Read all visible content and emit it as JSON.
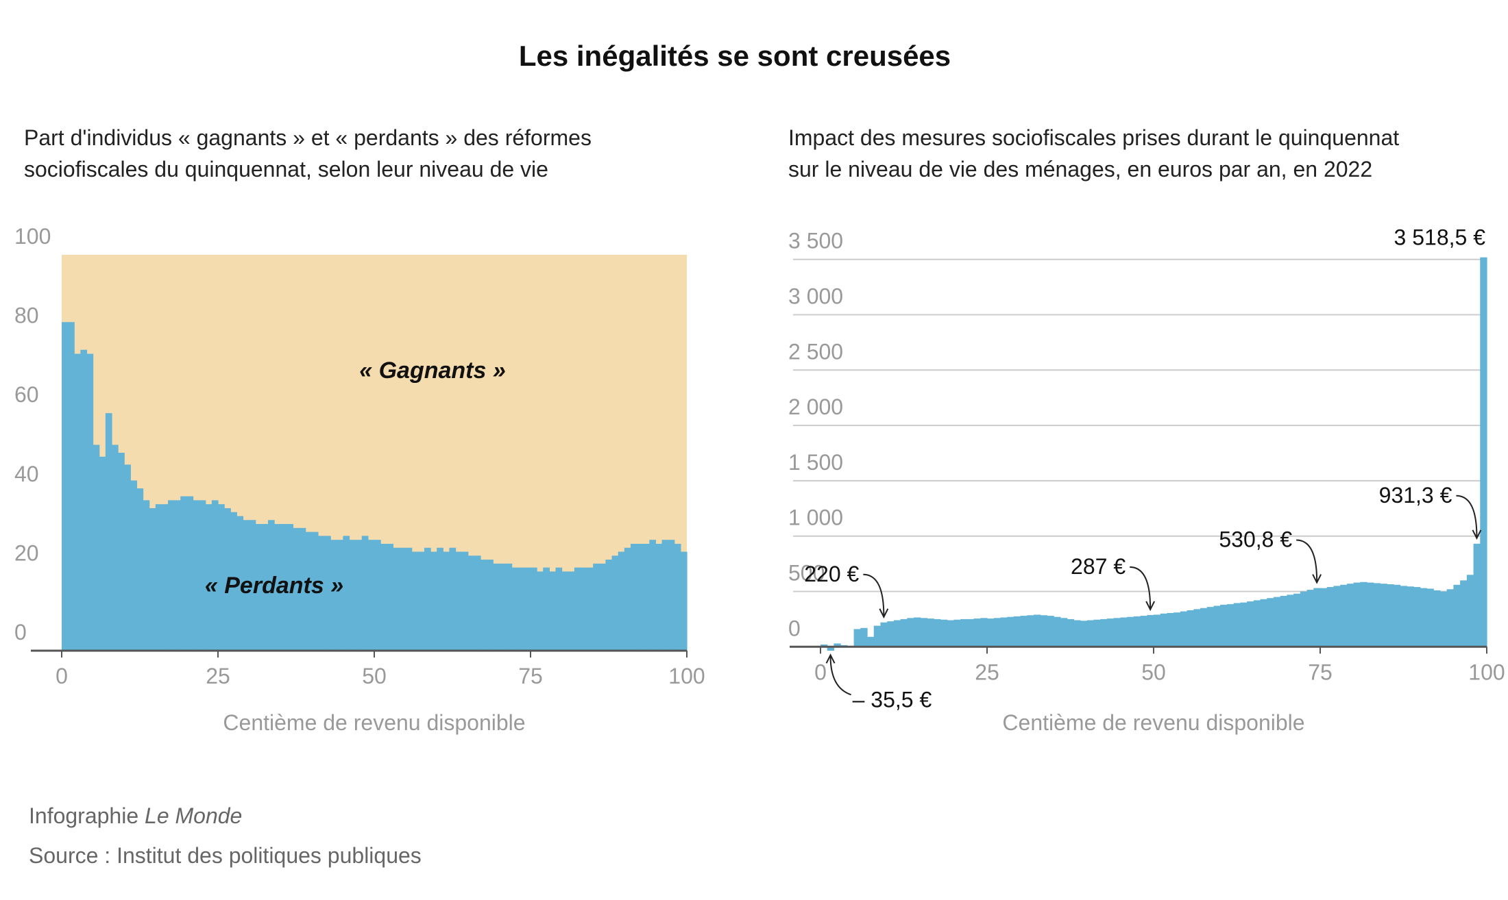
{
  "title": "Les inégalités se sont creusées",
  "credit": "Infographie",
  "credit_brand": "Le Monde",
  "source": "Source : Institut des politiques publiques",
  "chart_data": [
    {
      "type": "bar",
      "subtitle": [
        "Part d'individus « gagnants » et « perdants » des réformes",
        "sociofiscales du quinquennat, selon leur niveau de vie"
      ],
      "x_label": "Centième de revenu disponible",
      "annotations": [
        "« Gagnants »",
        "« Perdants »"
      ],
      "x": [
        1,
        2,
        3,
        4,
        5,
        6,
        7,
        8,
        9,
        10,
        11,
        12,
        13,
        14,
        15,
        16,
        17,
        18,
        19,
        20,
        21,
        22,
        23,
        24,
        25,
        26,
        27,
        28,
        29,
        30,
        31,
        32,
        33,
        34,
        35,
        36,
        37,
        38,
        39,
        40,
        41,
        42,
        43,
        44,
        45,
        46,
        47,
        48,
        49,
        50,
        51,
        52,
        53,
        54,
        55,
        56,
        57,
        58,
        59,
        60,
        61,
        62,
        63,
        64,
        65,
        66,
        67,
        68,
        69,
        70,
        71,
        72,
        73,
        74,
        75,
        76,
        77,
        78,
        79,
        80,
        81,
        82,
        83,
        84,
        85,
        86,
        87,
        88,
        89,
        90,
        91,
        92,
        93,
        94,
        95,
        96,
        97,
        98,
        99,
        100
      ],
      "values": [
        83,
        83,
        75,
        76,
        75,
        52,
        49,
        60,
        52,
        50,
        47,
        43,
        41,
        38,
        36,
        37,
        37,
        38,
        38,
        39,
        39,
        38,
        38,
        37,
        38,
        37,
        36,
        35,
        34,
        33,
        33,
        32,
        32,
        33,
        32,
        32,
        32,
        31,
        31,
        30,
        30,
        29,
        29,
        28,
        28,
        29,
        28,
        28,
        29,
        28,
        28,
        27,
        27,
        26,
        26,
        26,
        25,
        25,
        26,
        25,
        26,
        25,
        26,
        25,
        25,
        24,
        24,
        23,
        23,
        22,
        22,
        22,
        21,
        21,
        21,
        21,
        20,
        21,
        20,
        21,
        20,
        20,
        21,
        21,
        21,
        22,
        22,
        23,
        24,
        25,
        26,
        27,
        27,
        27,
        28,
        27,
        28,
        28,
        27,
        25
      ],
      "color": "#62b3d6",
      "background_color": "#f5dcae",
      "xlim": [
        0,
        100
      ],
      "xticks": [
        0,
        25,
        50,
        75,
        100
      ],
      "ylim": [
        0,
        100
      ],
      "yticks": [
        0,
        20,
        40,
        60,
        80,
        100
      ],
      "grid": false
    },
    {
      "type": "bar",
      "subtitle": [
        "Impact des mesures sociofiscales prises durant le quinquennat",
        "sur le niveau de vie des ménages, en euros par an, en 2022"
      ],
      "x_label": "Centième de revenu disponible",
      "x": [
        1,
        2,
        3,
        4,
        5,
        6,
        7,
        8,
        9,
        10,
        11,
        12,
        13,
        14,
        15,
        16,
        17,
        18,
        19,
        20,
        21,
        22,
        23,
        24,
        25,
        26,
        27,
        28,
        29,
        30,
        31,
        32,
        33,
        34,
        35,
        36,
        37,
        38,
        39,
        40,
        41,
        42,
        43,
        44,
        45,
        46,
        47,
        48,
        49,
        50,
        51,
        52,
        53,
        54,
        55,
        56,
        57,
        58,
        59,
        60,
        61,
        62,
        63,
        64,
        65,
        66,
        67,
        68,
        69,
        70,
        71,
        72,
        73,
        74,
        75,
        76,
        77,
        78,
        79,
        80,
        81,
        82,
        83,
        84,
        85,
        86,
        87,
        88,
        89,
        90,
        91,
        92,
        93,
        94,
        95,
        96,
        97,
        98,
        99,
        100
      ],
      "values": [
        20,
        -35.5,
        30,
        15,
        -5,
        160,
        170,
        90,
        190,
        220,
        230,
        240,
        250,
        260,
        265,
        260,
        255,
        250,
        245,
        240,
        245,
        250,
        250,
        255,
        260,
        255,
        260,
        265,
        270,
        275,
        280,
        285,
        290,
        285,
        280,
        270,
        260,
        250,
        240,
        235,
        240,
        245,
        250,
        255,
        260,
        265,
        270,
        275,
        280,
        287,
        290,
        300,
        305,
        310,
        320,
        330,
        340,
        350,
        360,
        370,
        380,
        385,
        395,
        400,
        410,
        420,
        430,
        440,
        450,
        460,
        470,
        480,
        500,
        515,
        530.8,
        530,
        540,
        550,
        560,
        570,
        580,
        585,
        580,
        575,
        570,
        565,
        560,
        550,
        545,
        540,
        530,
        525,
        510,
        500,
        520,
        560,
        600,
        650,
        931.3,
        3518.5
      ],
      "value_labels": [
        null,
        "– 35,5 €",
        null,
        null,
        null,
        null,
        null,
        null,
        null,
        "220 €",
        null,
        null,
        null,
        null,
        null,
        null,
        null,
        null,
        null,
        null,
        null,
        null,
        null,
        null,
        null,
        null,
        null,
        null,
        null,
        null,
        null,
        null,
        null,
        null,
        null,
        null,
        null,
        null,
        null,
        null,
        null,
        null,
        null,
        null,
        null,
        null,
        null,
        null,
        null,
        "287 €",
        null,
        null,
        null,
        null,
        null,
        null,
        null,
        null,
        null,
        null,
        null,
        null,
        null,
        null,
        null,
        null,
        null,
        null,
        null,
        null,
        null,
        null,
        null,
        null,
        "530,8 €",
        null,
        null,
        null,
        null,
        null,
        null,
        null,
        null,
        null,
        null,
        null,
        null,
        null,
        null,
        null,
        null,
        null,
        null,
        null,
        null,
        null,
        null,
        null,
        "931,3 €",
        "3 518,5 €"
      ],
      "color": "#62b3d6",
      "xlim": [
        0,
        100
      ],
      "xticks": [
        0,
        25,
        50,
        75,
        100
      ],
      "ylim": [
        -60,
        3560
      ],
      "yticks": [
        0,
        500,
        {
          "value": 1000,
          "label": "1 000"
        },
        {
          "value": 1500,
          "label": "1 500"
        },
        {
          "value": 2000,
          "label": "2 000"
        },
        {
          "value": 2500,
          "label": "2 500"
        },
        {
          "value": 3000,
          "label": "3 000"
        },
        {
          "value": 3500,
          "label": "3 500"
        }
      ],
      "grid": true
    }
  ]
}
